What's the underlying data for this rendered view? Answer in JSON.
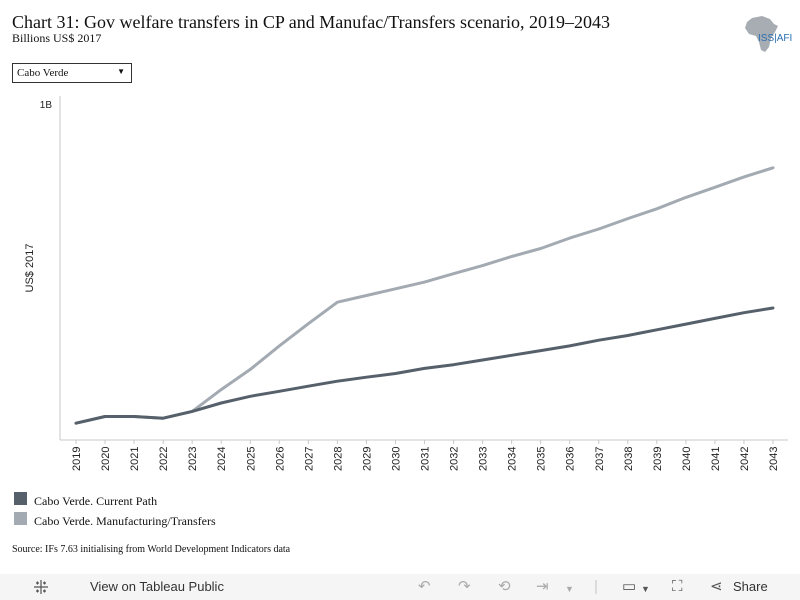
{
  "header": {
    "title": "Chart 31: Gov welfare transfers in CP and Manufac/Transfers scenario, 2019–2043",
    "subtitle": "Billions US$ 2017",
    "logo_text": "ISS|AFI"
  },
  "filter": {
    "selected": "Cabo Verde"
  },
  "colors": {
    "current_path": "#56606b",
    "manufacturing": "#a3aab2",
    "logo_gray": "#a7adb3",
    "logo_blue": "#2a6fb0"
  },
  "source": "Source: IFs 7.63 initialising from World Development Indicators data",
  "toolbar": {
    "view_label": "View on Tableau Public",
    "share_label": "Share"
  },
  "chart_data": {
    "type": "line",
    "ylabel": "US$ 2017",
    "y_ticks": [
      "1B"
    ],
    "ylim": [
      0,
      1.0
    ],
    "grid": false,
    "legend_position": "bottom-left",
    "x": [
      "2019",
      "2020",
      "2021",
      "2022",
      "2023",
      "2024",
      "2025",
      "2026",
      "2027",
      "2028",
      "2029",
      "2030",
      "2031",
      "2032",
      "2033",
      "2034",
      "2035",
      "2036",
      "2037",
      "2038",
      "2039",
      "2040",
      "2041",
      "2042",
      "2043"
    ],
    "series": [
      {
        "name": "Cabo Verde. Current Path",
        "values": [
          0.05,
          0.07,
          0.07,
          0.065,
          0.085,
          0.11,
          0.13,
          0.145,
          0.16,
          0.175,
          0.187,
          0.198,
          0.213,
          0.224,
          0.238,
          0.252,
          0.266,
          0.28,
          0.297,
          0.311,
          0.328,
          0.345,
          0.362,
          0.379,
          0.393
        ]
      },
      {
        "name": "Cabo Verde. Manufacturing/Transfers",
        "values": [
          0.05,
          0.07,
          0.07,
          0.065,
          0.085,
          0.15,
          0.21,
          0.28,
          0.346,
          0.41,
          0.43,
          0.45,
          0.47,
          0.495,
          0.519,
          0.546,
          0.57,
          0.601,
          0.628,
          0.659,
          0.688,
          0.722,
          0.752,
          0.783,
          0.81
        ]
      }
    ]
  }
}
